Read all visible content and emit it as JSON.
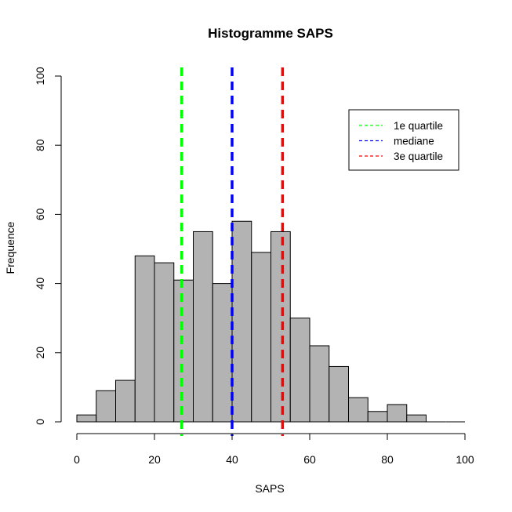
{
  "chart_data": {
    "type": "bar",
    "subtype": "histogram",
    "title": "Histogramme  SAPS",
    "xlabel": "SAPS",
    "ylabel": "Frequence",
    "xlim": [
      0,
      100
    ],
    "ylim": [
      0,
      100
    ],
    "x_ticks": [
      0,
      20,
      40,
      60,
      80,
      100
    ],
    "y_ticks": [
      0,
      20,
      40,
      60,
      80,
      100
    ],
    "bin_width": 5,
    "bins": [
      {
        "start": 0,
        "end": 5,
        "count": 2
      },
      {
        "start": 5,
        "end": 10,
        "count": 9
      },
      {
        "start": 10,
        "end": 15,
        "count": 12
      },
      {
        "start": 15,
        "end": 20,
        "count": 48
      },
      {
        "start": 20,
        "end": 25,
        "count": 46
      },
      {
        "start": 25,
        "end": 30,
        "count": 41
      },
      {
        "start": 30,
        "end": 35,
        "count": 55
      },
      {
        "start": 35,
        "end": 40,
        "count": 40
      },
      {
        "start": 40,
        "end": 45,
        "count": 58
      },
      {
        "start": 45,
        "end": 50,
        "count": 49
      },
      {
        "start": 50,
        "end": 55,
        "count": 55
      },
      {
        "start": 55,
        "end": 60,
        "count": 30
      },
      {
        "start": 60,
        "end": 65,
        "count": 22
      },
      {
        "start": 65,
        "end": 70,
        "count": 16
      },
      {
        "start": 70,
        "end": 75,
        "count": 7
      },
      {
        "start": 75,
        "end": 80,
        "count": 3
      },
      {
        "start": 80,
        "end": 85,
        "count": 5
      },
      {
        "start": 85,
        "end": 90,
        "count": 2
      },
      {
        "start": 90,
        "end": 95,
        "count": 0
      },
      {
        "start": 95,
        "end": 100,
        "count": 0
      }
    ],
    "bar_color": "#b3b3b3",
    "reference_lines": [
      {
        "name": "1e quartile",
        "value": 27,
        "color": "#00ff00"
      },
      {
        "name": "mediane",
        "value": 40,
        "color": "#0000ff"
      },
      {
        "name": "3e quartile",
        "value": 53,
        "color": "#ff0000"
      }
    ],
    "legend_position": "top-right"
  }
}
